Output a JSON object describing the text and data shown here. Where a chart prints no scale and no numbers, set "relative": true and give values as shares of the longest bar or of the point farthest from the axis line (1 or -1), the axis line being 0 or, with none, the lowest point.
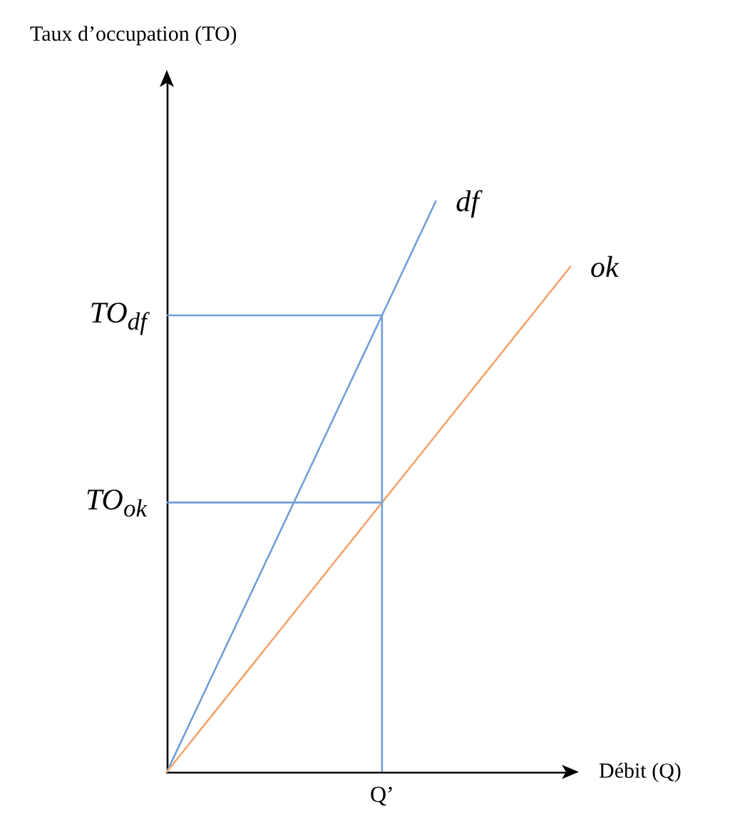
{
  "chart_data": {
    "type": "line",
    "title": "Taux d’occupation (TO)",
    "xlabel": "Débit (Q)",
    "relative": true,
    "categories": [
      null,
      null,
      null,
      null,
      null,
      null,
      null,
      null,
      null,
      null,
      null,
      null,
      null,
      null,
      null,
      null
    ],
    "series": [
      {
        "name": "df",
        "color": "#6f9fd8",
        "values": [
          0,
          0.1,
          0.2,
          0.3,
          0.4,
          0.5,
          0.6,
          0.7,
          0.8,
          0.9,
          1,
          null,
          null,
          null,
          null,
          null
        ]
      },
      {
        "name": "ok",
        "color": "#f4a46a",
        "values": [
          0,
          0.059,
          0.118,
          0.177,
          0.236,
          0.295,
          0.354,
          0.413,
          0.472,
          0.531,
          0.59,
          0.649,
          0.708,
          0.767,
          0.826,
          0.885
        ]
      }
    ],
    "ref_lines": [
      {
        "axis": "y",
        "value": 0.8,
        "label": "TO$_{df}$",
        "color": "#6f9fd8"
      },
      {
        "axis": "y",
        "value": 0.472,
        "label": "TO$_{ok}$",
        "color": "#6f9fd8"
      }
    ],
    "annotations": [
      "Q’"
    ],
    "grid": false,
    "legend": false,
    "marker": "none",
    "line_style": "solid"
  }
}
